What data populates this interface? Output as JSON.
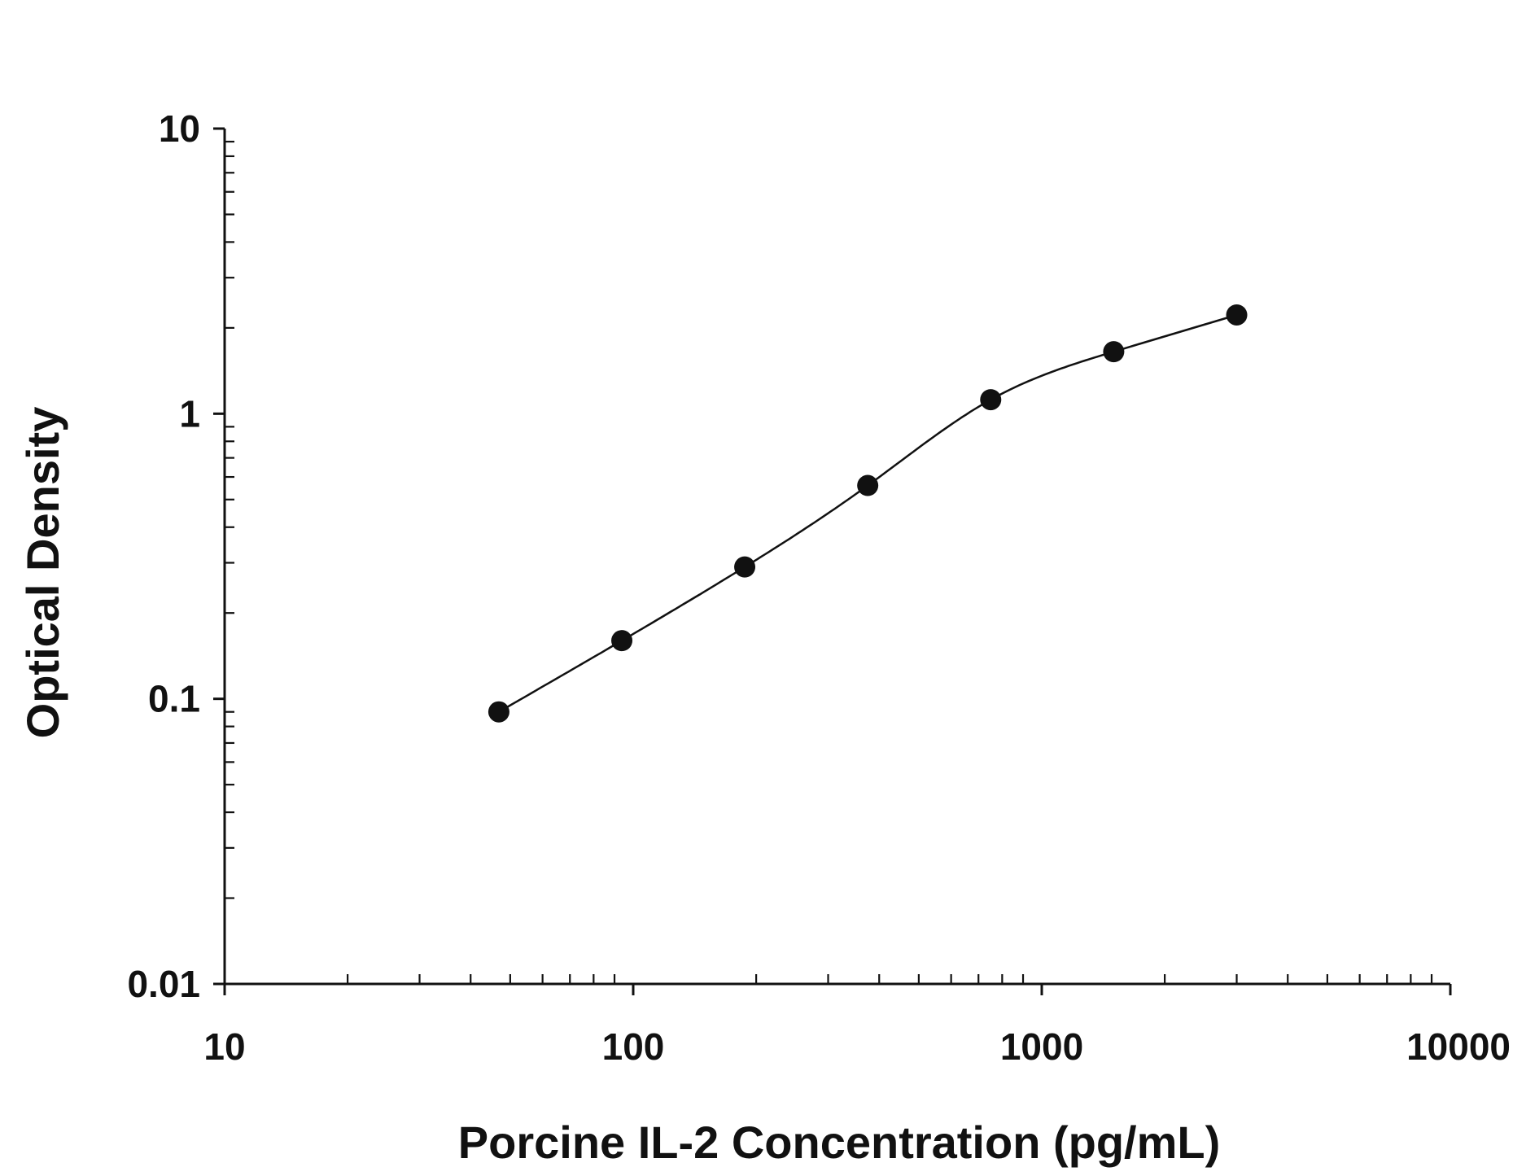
{
  "chart_data": {
    "type": "scatter",
    "xlabel": "Porcine IL-2 Concentration (pg/mL)",
    "ylabel": "Optical Density",
    "x_scale": "log",
    "y_scale": "log",
    "xlim": [
      10,
      10000
    ],
    "ylim": [
      0.01,
      10
    ],
    "x_ticks": [
      "10",
      "100",
      "1000",
      "10000"
    ],
    "y_ticks": [
      "0.01",
      "0.1",
      "1",
      "10"
    ],
    "grid": false,
    "legend": "none",
    "fit_line": true,
    "points": [
      {
        "x": 46.9,
        "y": 0.09
      },
      {
        "x": 93.8,
        "y": 0.16
      },
      {
        "x": 187.5,
        "y": 0.29
      },
      {
        "x": 375,
        "y": 0.56
      },
      {
        "x": 750,
        "y": 1.12
      },
      {
        "x": 1500,
        "y": 1.65
      },
      {
        "x": 3000,
        "y": 2.22
      }
    ],
    "colors": {
      "ink": "#111111",
      "background": "#ffffff"
    }
  }
}
